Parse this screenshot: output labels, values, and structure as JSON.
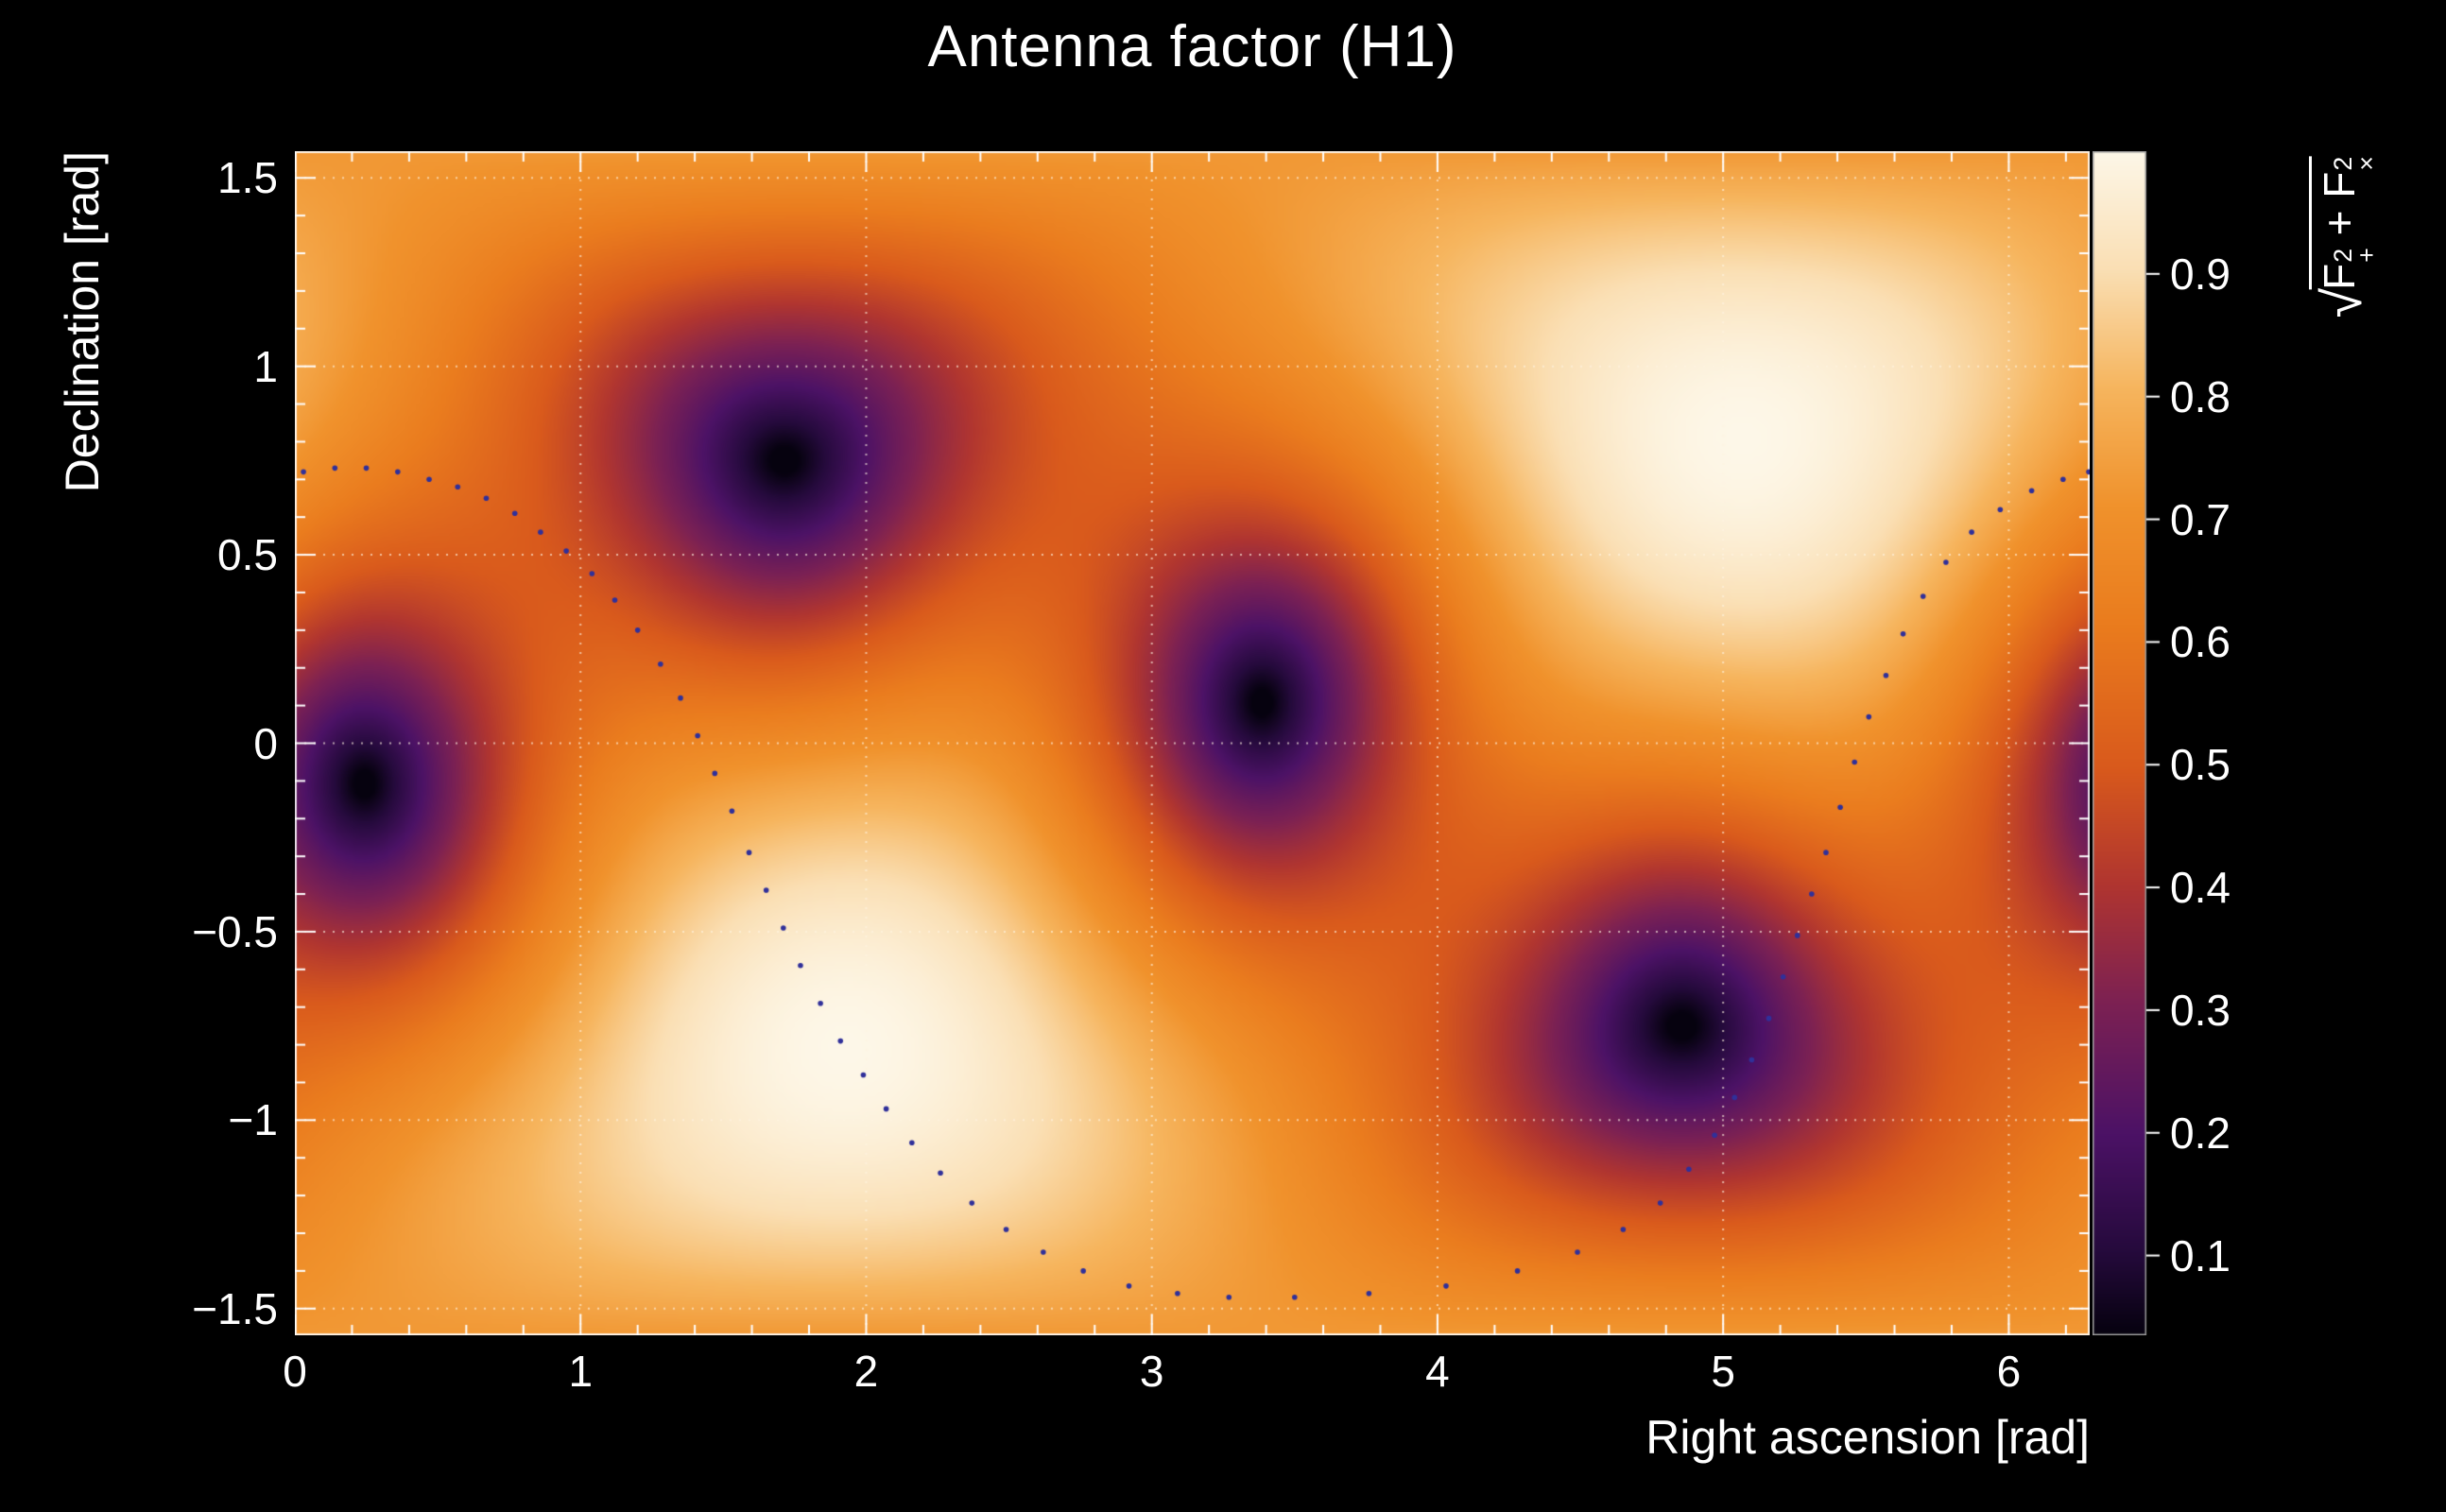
{
  "page": {
    "background_color": "#000000",
    "text_color": "#ffffff"
  },
  "chart_data": {
    "type": "heatmap",
    "title": "Antenna factor (H1)",
    "xlabel": "Right ascension [rad]",
    "ylabel": "Declination [rad]",
    "zlabel": "√(F₊² + Fₓ²)",
    "zlabel_parts": {
      "radical": "√",
      "f": "F",
      "exp": "2",
      "sub_plus": "+",
      "plus": " + ",
      "sub_cross": "×"
    },
    "xlim": [
      0,
      6.2832
    ],
    "ylim": [
      -1.5708,
      1.5708
    ],
    "zlim": [
      0.035,
      1.0
    ],
    "x_ticks": [
      {
        "v": 0,
        "label": "0"
      },
      {
        "v": 1,
        "label": "1"
      },
      {
        "v": 2,
        "label": "2"
      },
      {
        "v": 3,
        "label": "3"
      },
      {
        "v": 4,
        "label": "4"
      },
      {
        "v": 5,
        "label": "5"
      },
      {
        "v": 6,
        "label": "6"
      }
    ],
    "y_ticks": [
      {
        "v": 1.5,
        "label": "1.5"
      },
      {
        "v": 1,
        "label": "1"
      },
      {
        "v": 0.5,
        "label": "0.5"
      },
      {
        "v": 0,
        "label": "0"
      },
      {
        "v": -0.5,
        "label": "−0.5"
      },
      {
        "v": -1,
        "label": "−1"
      },
      {
        "v": -1.5,
        "label": "−1.5"
      }
    ],
    "z_ticks": [
      {
        "v": 0.9,
        "label": "0.9"
      },
      {
        "v": 0.8,
        "label": "0.8"
      },
      {
        "v": 0.7,
        "label": "0.7"
      },
      {
        "v": 0.6,
        "label": "0.6"
      },
      {
        "v": 0.5,
        "label": "0.5"
      },
      {
        "v": 0.4,
        "label": "0.4"
      },
      {
        "v": 0.3,
        "label": "0.3"
      },
      {
        "v": 0.2,
        "label": "0.2"
      },
      {
        "v": 0.1,
        "label": "0.1"
      }
    ],
    "x_minor_step": 0.2,
    "y_minor_step": 0.1,
    "grid": {
      "show": true,
      "color": "rgba(255,244,226,0.65)",
      "dash": [
        2,
        8
      ]
    },
    "pattern": {
      "description": "Antenna power pattern sqrt(F+^2 + Fx^2) of the H1 detector over the sky; maxima at zenith/nadir, four nulls on the horizon circle",
      "zenith_maximum": {
        "ra": 5.07,
        "dec": 0.809
      },
      "nadir_maximum": {
        "ra": 1.93,
        "dec": -0.809
      },
      "nulls": [
        [
          0.25,
          -0.1
        ],
        [
          1.7,
          0.75
        ],
        [
          3.39,
          0.1
        ],
        [
          4.84,
          -0.75
        ]
      ],
      "value_at_maxima": 1.0,
      "value_at_nulls": 0.0
    },
    "colormap": [
      [
        0.0,
        "#06020f"
      ],
      [
        0.07,
        "#250a3c"
      ],
      [
        0.17,
        "#4c1266"
      ],
      [
        0.28,
        "#7c2153"
      ],
      [
        0.38,
        "#b03530"
      ],
      [
        0.48,
        "#d95a1c"
      ],
      [
        0.6,
        "#ea7c1e"
      ],
      [
        0.7,
        "#f0922c"
      ],
      [
        0.8,
        "#f6b55e"
      ],
      [
        0.9,
        "#fadfb4"
      ],
      [
        1.0,
        "#fdf7e8"
      ]
    ],
    "track": {
      "name": "dotted-sky-track",
      "color": "#30309a",
      "dot_radius": 2.8,
      "points": [
        [
          0.03,
          0.72
        ],
        [
          0.14,
          0.73
        ],
        [
          0.25,
          0.73
        ],
        [
          0.36,
          0.72
        ],
        [
          0.47,
          0.7
        ],
        [
          0.57,
          0.68
        ],
        [
          0.67,
          0.65
        ],
        [
          0.77,
          0.61
        ],
        [
          0.86,
          0.56
        ],
        [
          0.95,
          0.51
        ],
        [
          1.04,
          0.45
        ],
        [
          1.12,
          0.38
        ],
        [
          1.2,
          0.3
        ],
        [
          1.28,
          0.21
        ],
        [
          1.35,
          0.12
        ],
        [
          1.41,
          0.02
        ],
        [
          1.47,
          -0.08
        ],
        [
          1.53,
          -0.18
        ],
        [
          1.59,
          -0.29
        ],
        [
          1.65,
          -0.39
        ],
        [
          1.71,
          -0.49
        ],
        [
          1.77,
          -0.59
        ],
        [
          1.84,
          -0.69
        ],
        [
          1.91,
          -0.79
        ],
        [
          1.99,
          -0.88
        ],
        [
          2.07,
          -0.97
        ],
        [
          2.16,
          -1.06
        ],
        [
          2.26,
          -1.14
        ],
        [
          2.37,
          -1.22
        ],
        [
          2.49,
          -1.29
        ],
        [
          2.62,
          -1.35
        ],
        [
          2.76,
          -1.4
        ],
        [
          2.92,
          -1.44
        ],
        [
          3.09,
          -1.46
        ],
        [
          3.27,
          -1.47
        ],
        [
          3.5,
          -1.47
        ],
        [
          3.76,
          -1.46
        ],
        [
          4.03,
          -1.44
        ],
        [
          4.28,
          -1.4
        ],
        [
          4.49,
          -1.35
        ],
        [
          4.65,
          -1.29
        ],
        [
          4.78,
          -1.22
        ],
        [
          4.88,
          -1.13
        ],
        [
          4.97,
          -1.04
        ],
        [
          5.04,
          -0.94
        ],
        [
          5.1,
          -0.84
        ],
        [
          5.16,
          -0.73
        ],
        [
          5.21,
          -0.62
        ],
        [
          5.26,
          -0.51
        ],
        [
          5.31,
          -0.4
        ],
        [
          5.36,
          -0.29
        ],
        [
          5.41,
          -0.17
        ],
        [
          5.46,
          -0.05
        ],
        [
          5.51,
          0.07
        ],
        [
          5.57,
          0.18
        ],
        [
          5.63,
          0.29
        ],
        [
          5.7,
          0.39
        ],
        [
          5.78,
          0.48
        ],
        [
          5.87,
          0.56
        ],
        [
          5.97,
          0.62
        ],
        [
          6.08,
          0.67
        ],
        [
          6.19,
          0.7
        ],
        [
          6.28,
          0.72
        ]
      ]
    }
  }
}
